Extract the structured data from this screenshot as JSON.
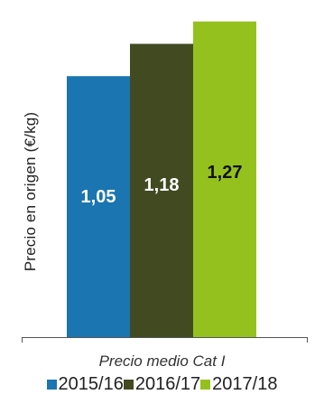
{
  "chart_data": {
    "type": "bar",
    "categories": [
      "Precio medio Cat I"
    ],
    "series": [
      {
        "name": "2015/16",
        "values": [
          1.05
        ],
        "label": "1,05",
        "color": "#1a75b0",
        "label_color": "#ffffff"
      },
      {
        "name": "2016/17",
        "values": [
          1.18
        ],
        "label": "1,18",
        "color": "#424a22",
        "label_color": "#ffffff"
      },
      {
        "name": "2017/18",
        "values": [
          1.27
        ],
        "label": "1,27",
        "color": "#95c11f",
        "label_color": "#111111"
      }
    ],
    "ylabel": "Precio en origen (€/kg)",
    "xlabel": "Precio medio Cat I",
    "ylim": [
      0,
      1.32
    ],
    "grid": false,
    "legend_position": "bottom"
  }
}
